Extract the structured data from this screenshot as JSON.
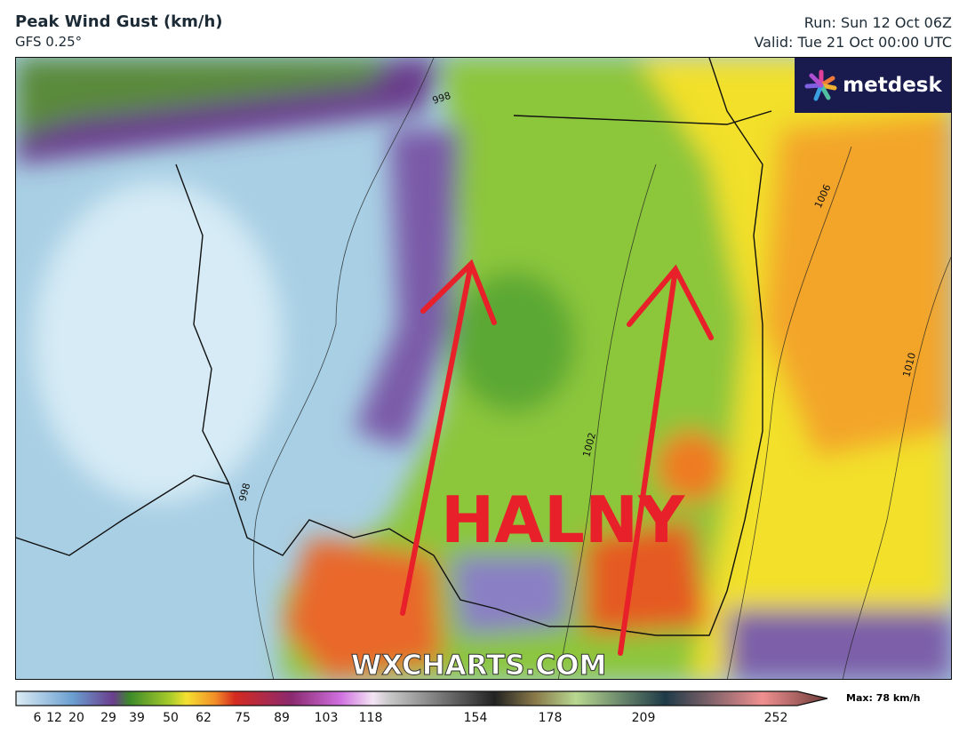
{
  "header": {
    "title": "Peak Wind Gust (km/h)",
    "model": "GFS 0.25°",
    "run": "Run: Sun 12 Oct 06Z",
    "valid": "Valid: Tue 21 Oct 00:00 UTC"
  },
  "logo": {
    "text": "metdesk"
  },
  "map": {
    "annotation": "HALNY",
    "annotation_color": "#e8202a",
    "watermark": "WXCHARTS.COM",
    "isobar_labels": [
      "998",
      "1006",
      "1002",
      "1010",
      "998"
    ]
  },
  "legend": {
    "max_label": "Max: 78 km/h",
    "ticks": [
      "6",
      "12",
      "20",
      "29",
      "39",
      "50",
      "62",
      "75",
      "89",
      "103",
      "118",
      "154",
      "178",
      "209",
      "252"
    ]
  }
}
